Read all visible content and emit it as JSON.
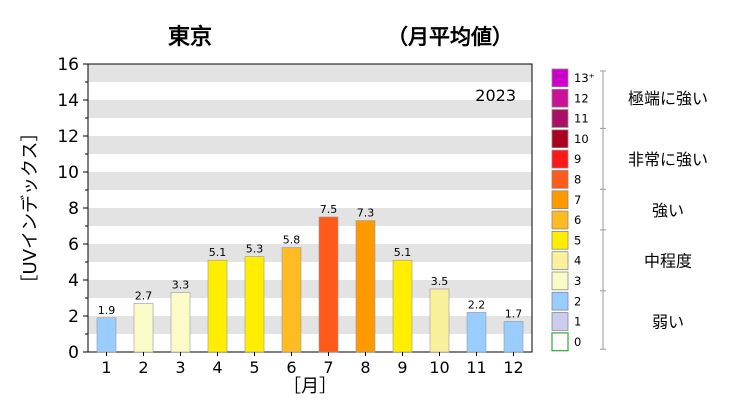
{
  "header": {
    "city": "東京",
    "subtitle": "（月平均値）"
  },
  "chart_data": {
    "type": "bar",
    "year_label": "2023",
    "xlabel": "［月］",
    "ylabel": "［UVインデックス］",
    "ylim": [
      0,
      16
    ],
    "yticks": [
      "0",
      "2",
      "4",
      "6",
      "8",
      "10",
      "12",
      "14",
      "16"
    ],
    "grid": "horizontal-bands",
    "categories": [
      "1",
      "2",
      "3",
      "4",
      "5",
      "6",
      "7",
      "8",
      "9",
      "10",
      "11",
      "12"
    ],
    "values": [
      1.9,
      2.7,
      3.3,
      5.1,
      5.3,
      5.8,
      7.5,
      7.3,
      5.1,
      3.5,
      2.2,
      1.7
    ],
    "value_labels": [
      "1.9",
      "2.7",
      "3.3",
      "5.1",
      "5.3",
      "5.8",
      "7.5",
      "7.3",
      "5.1",
      "3.5",
      "2.2",
      "1.7"
    ],
    "legend_placement": "right",
    "legend_scale": [
      {
        "label": "13⁺",
        "color": "#cc00cc"
      },
      {
        "label": "12",
        "color": "#cc1199"
      },
      {
        "label": "11",
        "color": "#aa1166"
      },
      {
        "label": "10",
        "color": "#aa0022"
      },
      {
        "label": "9",
        "color": "#ff1a1a"
      },
      {
        "label": "8",
        "color": "#ff5a1a"
      },
      {
        "label": "7",
        "color": "#ff9900"
      },
      {
        "label": "6",
        "color": "#ffbb22"
      },
      {
        "label": "5",
        "color": "#ffee00"
      },
      {
        "label": "4",
        "color": "#f8f09a"
      },
      {
        "label": "3",
        "color": "#fbfbc8"
      },
      {
        "label": "2",
        "color": "#99ccff"
      },
      {
        "label": "1",
        "color": "#ccccee"
      },
      {
        "label": "0",
        "color": "#ffffff",
        "border": "#33aa33"
      }
    ],
    "legend_categories": [
      {
        "label": "極端に強い",
        "from": 11,
        "to": 13
      },
      {
        "label": "非常に強い",
        "from": 8,
        "to": 10
      },
      {
        "label": "強い",
        "from": 6,
        "to": 7
      },
      {
        "label": "中程度",
        "from": 3,
        "to": 5
      },
      {
        "label": "弱い",
        "from": 0,
        "to": 2
      }
    ]
  }
}
